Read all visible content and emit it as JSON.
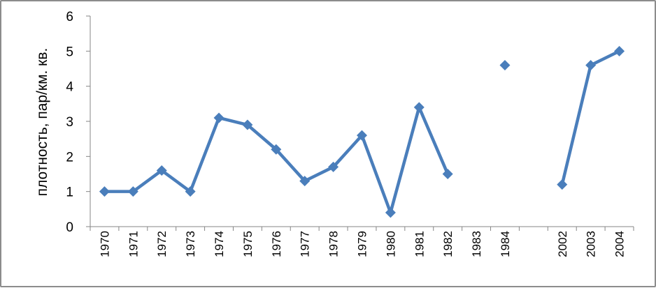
{
  "chart_data": {
    "type": "line",
    "title": "",
    "xlabel": "",
    "ylabel": "плотность, пар/км. кв.",
    "ylim": [
      0,
      6
    ],
    "yticks": [
      "0",
      "1",
      "2",
      "3",
      "4",
      "5",
      "6"
    ],
    "categories": [
      "1970",
      "1971",
      "1972",
      "1973",
      "1974",
      "1975",
      "1976",
      "1977",
      "1978",
      "1979",
      "1980",
      "1981",
      "1982",
      "1983",
      "1984",
      "",
      "2002",
      "2003",
      "2004"
    ],
    "series": [
      {
        "values": [
          1.0,
          1.0,
          1.6,
          1.0,
          3.1,
          2.9,
          2.2,
          1.3,
          1.7,
          2.6,
          0.4,
          3.4,
          1.5,
          null,
          4.6,
          null,
          1.2,
          4.6,
          5.0
        ]
      }
    ],
    "grid": false,
    "legend": "none",
    "colors": {
      "series": "#4a7ebb",
      "axis": "#868686"
    }
  }
}
